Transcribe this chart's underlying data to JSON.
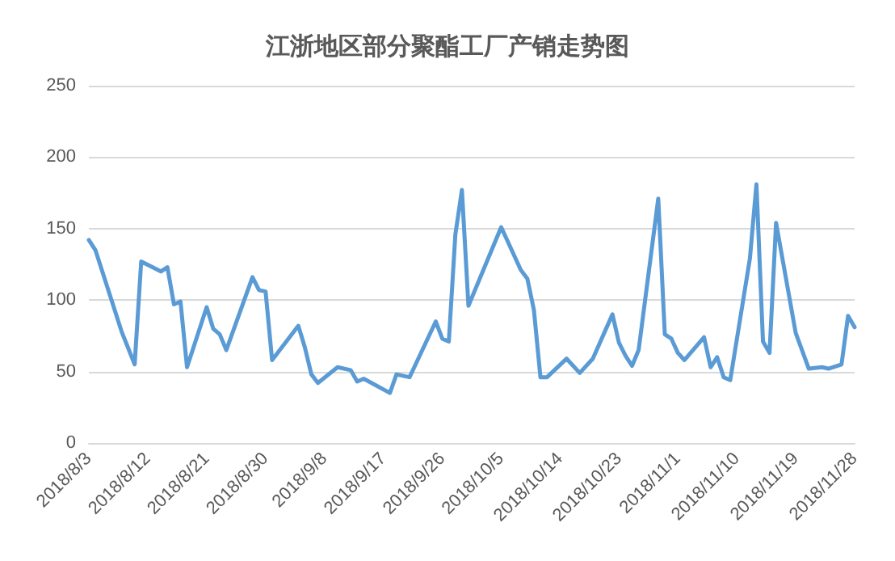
{
  "chart_data": {
    "type": "line",
    "title": "江浙地区部分聚酯工厂产销走势图",
    "x": [
      "2018-08-03",
      "2018-08-04",
      "2018-08-08",
      "2018-08-10",
      "2018-08-11",
      "2018-08-14",
      "2018-08-15",
      "2018-08-16",
      "2018-08-17",
      "2018-08-18",
      "2018-08-21",
      "2018-08-22",
      "2018-08-23",
      "2018-08-24",
      "2018-08-28",
      "2018-08-29",
      "2018-08-30",
      "2018-08-31",
      "2018-09-04",
      "2018-09-05",
      "2018-09-06",
      "2018-09-07",
      "2018-09-10",
      "2018-09-12",
      "2018-09-13",
      "2018-09-14",
      "2018-09-18",
      "2018-09-19",
      "2018-09-21",
      "2018-09-25",
      "2018-09-26",
      "2018-09-27",
      "2018-09-28",
      "2018-09-29",
      "2018-09-30",
      "2018-10-05",
      "2018-10-08",
      "2018-10-09",
      "2018-10-10",
      "2018-10-11",
      "2018-10-12",
      "2018-10-15",
      "2018-10-17",
      "2018-10-19",
      "2018-10-22",
      "2018-10-23",
      "2018-10-24",
      "2018-10-25",
      "2018-10-26",
      "2018-10-29",
      "2018-10-30",
      "2018-10-31",
      "2018-11-01",
      "2018-11-02",
      "2018-11-05",
      "2018-11-06",
      "2018-11-07",
      "2018-11-08",
      "2018-11-09",
      "2018-11-12",
      "2018-11-13",
      "2018-11-14",
      "2018-11-15",
      "2018-11-16",
      "2018-11-19",
      "2018-11-21",
      "2018-11-23",
      "2018-11-24",
      "2018-11-26",
      "2018-11-27",
      "2018-11-28"
    ],
    "series": [
      {
        "color": "#5b9bd5",
        "values": [
          142,
          135,
          78,
          55,
          127,
          120,
          123,
          97,
          99,
          53,
          95,
          80,
          76,
          65,
          116,
          107,
          106,
          58,
          82,
          67,
          48,
          42,
          53,
          51,
          43,
          45,
          35,
          48,
          46,
          85,
          73,
          71,
          146,
          177,
          96,
          151,
          121,
          115,
          93,
          46,
          46,
          59,
          49,
          59,
          90,
          70,
          61,
          54,
          65,
          171,
          76,
          73,
          63,
          58,
          74,
          53,
          60,
          46,
          44,
          129,
          181,
          71,
          63,
          154,
          77,
          52,
          53,
          52,
          55,
          89,
          81
        ]
      }
    ],
    "xlim": [
      "2018-08-03",
      "2018-11-28"
    ],
    "xticks": [
      {
        "value": "2018-08-03",
        "label": "2018/8/3"
      },
      {
        "value": "2018-08-12",
        "label": "2018/8/12"
      },
      {
        "value": "2018-08-21",
        "label": "2018/8/21"
      },
      {
        "value": "2018-08-30",
        "label": "2018/8/30"
      },
      {
        "value": "2018-09-08",
        "label": "2018/9/8"
      },
      {
        "value": "2018-09-17",
        "label": "2018/9/17"
      },
      {
        "value": "2018-09-26",
        "label": "2018/9/26"
      },
      {
        "value": "2018-10-05",
        "label": "2018/10/5"
      },
      {
        "value": "2018-10-14",
        "label": "2018/10/14"
      },
      {
        "value": "2018-10-23",
        "label": "2018/10/23"
      },
      {
        "value": "2018-11-01",
        "label": "2018/11/1"
      },
      {
        "value": "2018-11-10",
        "label": "2018/11/10"
      },
      {
        "value": "2018-11-19",
        "label": "2018/11/19"
      },
      {
        "value": "2018-11-28",
        "label": "2018/11/28"
      }
    ],
    "ylim": [
      0,
      250
    ],
    "yticks": [
      0,
      50,
      100,
      150,
      200,
      250
    ],
    "grid": "y",
    "marker": "none",
    "line_style": "solid"
  }
}
